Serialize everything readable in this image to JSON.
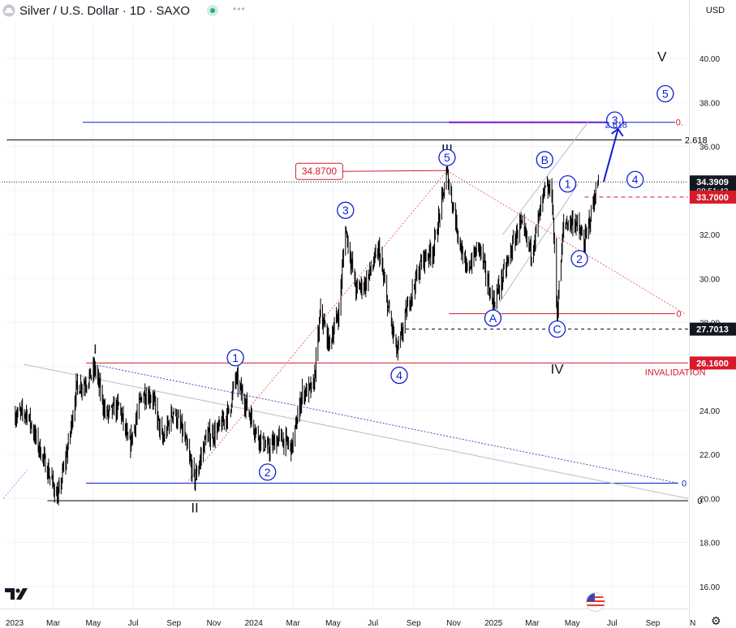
{
  "header": {
    "title": "Silver / U.S. Dollar · 1D · SAXO",
    "currency": "USD",
    "more_icon": "dots-icon"
  },
  "colors": {
    "candle": "#000000",
    "wave_blue": "#0d1fd1",
    "invalidation_red": "#d81b2a",
    "price_label_bg": "#131722",
    "price_red_bg": "#d81b2a",
    "grid": "#f0f3fa"
  },
  "chart_data": {
    "type": "candlestick",
    "y_axis": {
      "min": 15,
      "max": 41.7,
      "ticks": [
        16,
        18,
        20,
        22,
        24,
        26,
        28,
        30,
        32,
        34,
        36,
        38,
        40
      ]
    },
    "x_axis": {
      "start": "2023-01-01",
      "end": "2025-10-15",
      "ticks": [
        {
          "label": "2023",
          "date": "2023-01-01"
        },
        {
          "label": "Mar",
          "date": "2023-03-01"
        },
        {
          "label": "May",
          "date": "2023-05-01"
        },
        {
          "label": "Jul",
          "date": "2023-07-01"
        },
        {
          "label": "Sep",
          "date": "2023-09-01"
        },
        {
          "label": "Nov",
          "date": "2023-11-01"
        },
        {
          "label": "2024",
          "date": "2024-01-01"
        },
        {
          "label": "Mar",
          "date": "2024-03-01"
        },
        {
          "label": "May",
          "date": "2024-05-01"
        },
        {
          "label": "Jul",
          "date": "2024-07-01"
        },
        {
          "label": "Sep",
          "date": "2024-09-01"
        },
        {
          "label": "Nov",
          "date": "2024-11-01"
        },
        {
          "label": "2025",
          "date": "2025-01-01"
        },
        {
          "label": "Mar",
          "date": "2025-03-01"
        },
        {
          "label": "May",
          "date": "2025-05-01"
        },
        {
          "label": "Jul",
          "date": "2025-07-01"
        },
        {
          "label": "Sep",
          "date": "2025-09-01"
        },
        {
          "label": "N",
          "date": "2025-11-01"
        }
      ]
    },
    "price_path": [
      [
        "2023-01-01",
        23.8
      ],
      [
        "2023-01-20",
        23.9
      ],
      [
        "2023-02-05",
        22.5
      ],
      [
        "2023-02-28",
        20.7
      ],
      [
        "2023-03-08",
        20.0
      ],
      [
        "2023-03-25",
        22.6
      ],
      [
        "2023-04-05",
        25.0
      ],
      [
        "2023-04-20",
        25.3
      ],
      [
        "2023-05-04",
        25.9
      ],
      [
        "2023-05-20",
        23.8
      ],
      [
        "2023-06-10",
        24.2
      ],
      [
        "2023-06-25",
        22.3
      ],
      [
        "2023-07-15",
        24.8
      ],
      [
        "2023-07-31",
        24.6
      ],
      [
        "2023-08-15",
        22.6
      ],
      [
        "2023-08-31",
        24.0
      ],
      [
        "2023-09-15",
        23.0
      ],
      [
        "2023-10-03",
        20.8
      ],
      [
        "2023-10-20",
        22.8
      ],
      [
        "2023-11-05",
        23.0
      ],
      [
        "2023-11-25",
        24.0
      ],
      [
        "2023-12-04",
        25.5
      ],
      [
        "2023-12-20",
        24.3
      ],
      [
        "2024-01-05",
        23.0
      ],
      [
        "2024-01-22",
        22.2
      ],
      [
        "2024-02-10",
        22.8
      ],
      [
        "2024-02-28",
        22.3
      ],
      [
        "2024-03-15",
        24.8
      ],
      [
        "2024-04-01",
        25.0
      ],
      [
        "2024-04-12",
        28.5
      ],
      [
        "2024-04-25",
        27.0
      ],
      [
        "2024-05-10",
        28.5
      ],
      [
        "2024-05-20",
        32.3
      ],
      [
        "2024-06-05",
        29.5
      ],
      [
        "2024-06-20",
        29.8
      ],
      [
        "2024-07-10",
        31.3
      ],
      [
        "2024-07-25",
        28.5
      ],
      [
        "2024-08-07",
        26.6
      ],
      [
        "2024-08-25",
        29.0
      ],
      [
        "2024-09-15",
        30.9
      ],
      [
        "2024-10-01",
        31.3
      ],
      [
        "2024-10-22",
        34.8
      ],
      [
        "2024-11-05",
        32.5
      ],
      [
        "2024-11-20",
        30.3
      ],
      [
        "2024-12-10",
        31.5
      ],
      [
        "2024-12-31",
        28.8
      ],
      [
        "2025-01-20",
        30.5
      ],
      [
        "2025-02-10",
        32.5
      ],
      [
        "2025-02-28",
        31.2
      ],
      [
        "2025-03-20",
        34.0
      ],
      [
        "2025-03-31",
        34.0
      ],
      [
        "2025-04-08",
        28.4
      ],
      [
        "2025-04-18",
        32.5
      ],
      [
        "2025-05-05",
        32.6
      ],
      [
        "2025-05-20",
        31.6
      ],
      [
        "2025-06-05",
        33.8
      ],
      [
        "2025-06-10",
        34.4
      ]
    ],
    "horizontal_lines": [
      {
        "name": "fib-top-blue",
        "y": 37.1,
        "x1": "2023-04-15",
        "x2": "2025-10-05",
        "color": "#0d1fd1",
        "width": 1
      },
      {
        "name": "fib-top-purple",
        "y": 37.1,
        "x1": "2024-10-25",
        "x2": "2025-07-20",
        "color": "#6a1fd1",
        "width": 2
      },
      {
        "name": "fib-2618-black",
        "y": 36.3,
        "x1": "2022-12-20",
        "x2": "2025-10-15",
        "color": "#000000",
        "width": 1
      },
      {
        "name": "last-price-dotted",
        "y": 34.39,
        "x1": "2022-12-01",
        "x2": "2025-11-15",
        "color": "#131722",
        "width": 1,
        "dash": "1,2"
      },
      {
        "name": "level-3370",
        "y": 33.7,
        "x1": "2025-05-20",
        "x2": "2025-11-15",
        "color": "#d81b2a",
        "width": 1,
        "dash": "5,4"
      },
      {
        "name": "wave-a-low",
        "y": 28.4,
        "x1": "2024-10-25",
        "x2": "2025-10-05",
        "color": "#d81b2a",
        "width": 1
      },
      {
        "name": "level-27701",
        "y": 27.7,
        "x1": "2024-08-20",
        "x2": "2025-11-15",
        "color": "#000000",
        "width": 1,
        "dash": "4,4"
      },
      {
        "name": "invalidation",
        "y": 26.16,
        "x1": "2023-04-20",
        "x2": "2025-11-15",
        "color": "#d81b2a",
        "width": 1
      },
      {
        "name": "fib-zero-blue",
        "y": 20.7,
        "x1": "2023-04-20",
        "x2": "2025-10-10",
        "color": "#0d1fd1",
        "width": 1
      },
      {
        "name": "fib-zero-black",
        "y": 19.9,
        "x1": "2023-02-20",
        "x2": "2025-11-05",
        "color": "#000000",
        "width": 1
      }
    ],
    "trend_lines": [
      {
        "name": "wedge-upper",
        "x1": "2023-01-15",
        "y1": 26.1,
        "x2": "2025-10-25",
        "y2": 20.0,
        "color": "#b8bcc8",
        "width": 1
      },
      {
        "name": "wedge-lower-dotted",
        "x1": "2023-05-01",
        "y1": 26.1,
        "x2": "2025-10-10",
        "y2": 20.7,
        "color": "#3f51b5",
        "width": 1,
        "dash": "2,2"
      },
      {
        "name": "fib-up-dotted",
        "x1": "2023-09-20",
        "y1": 20.7,
        "x2": "2024-10-22",
        "y2": 34.9,
        "color": "#f06a7a",
        "width": 1,
        "dash": "2,2"
      },
      {
        "name": "fib-down-dotted",
        "x1": "2024-10-22",
        "y1": 34.9,
        "x2": "2025-10-20",
        "y2": 28.4,
        "color": "#f06a7a",
        "width": 1,
        "dash": "2,2"
      },
      {
        "name": "ghost-left",
        "x1": "2022-12-15",
        "y1": 20.0,
        "x2": "2023-01-20",
        "y2": 21.3,
        "color": "#90a0ff",
        "width": 1,
        "dash": "2,2"
      },
      {
        "name": "channel-upper",
        "x1": "2025-01-15",
        "y1": 32.0,
        "x2": "2025-05-25",
        "y2": 37.1,
        "color": "#b8bcc8",
        "width": 1
      },
      {
        "name": "channel-lower",
        "x1": "2025-01-10",
        "y1": 28.9,
        "x2": "2025-05-10",
        "y2": 34.3,
        "color": "#b8bcc8",
        "width": 1
      }
    ],
    "price_callout": {
      "label": "34.8700",
      "y": 34.87,
      "box_x": "2024-03-05",
      "line_to": "2024-10-22",
      "color": "#d81b2a"
    },
    "projection_arrow": {
      "x1": "2025-06-18",
      "y1": 34.4,
      "x2": "2025-07-10",
      "y2": 36.8,
      "color": "#0d1fd1"
    },
    "annotations": [
      {
        "text": "I",
        "date": "2023-05-04",
        "y": 26.8,
        "style": "roman"
      },
      {
        "text": "II",
        "date": "2023-10-03",
        "y": 19.6,
        "style": "roman"
      },
      {
        "text": "III",
        "date": "2024-10-22",
        "y": 35.9,
        "style": "roman"
      },
      {
        "text": "IV",
        "date": "2025-04-08",
        "y": 25.9,
        "style": "roman"
      },
      {
        "text": "V",
        "date": "2025-09-15",
        "y": 40.1,
        "style": "roman"
      },
      {
        "text": "1",
        "date": "2023-12-04",
        "y": 26.4,
        "style": "circle"
      },
      {
        "text": "2",
        "date": "2024-01-22",
        "y": 21.2,
        "style": "circle"
      },
      {
        "text": "3",
        "date": "2024-05-20",
        "y": 33.1,
        "style": "circle"
      },
      {
        "text": "4",
        "date": "2024-08-10",
        "y": 25.6,
        "style": "circle"
      },
      {
        "text": "5",
        "date": "2024-10-22",
        "y": 35.5,
        "style": "circle"
      },
      {
        "text": "A",
        "date": "2024-12-31",
        "y": 28.2,
        "style": "circle"
      },
      {
        "text": "B",
        "date": "2025-03-20",
        "y": 35.4,
        "style": "circle"
      },
      {
        "text": "C",
        "date": "2025-04-08",
        "y": 27.7,
        "style": "circle"
      },
      {
        "text": "1",
        "date": "2025-04-24",
        "y": 34.3,
        "style": "circle"
      },
      {
        "text": "2",
        "date": "2025-05-12",
        "y": 30.9,
        "style": "circle"
      },
      {
        "text": "3",
        "date": "2025-07-05",
        "y": 37.2,
        "style": "circle"
      },
      {
        "text": "4",
        "date": "2025-08-05",
        "y": 34.5,
        "style": "circle"
      },
      {
        "text": "5",
        "date": "2025-09-20",
        "y": 38.4,
        "style": "circle"
      }
    ],
    "fib_labels": [
      {
        "text": "2.618",
        "date": "2025-06-20",
        "y": 37.0,
        "color": "#0d1fd1"
      },
      {
        "text": "0.",
        "date": "2025-10-06",
        "y": 37.1,
        "color": "#d81b2a"
      },
      {
        "text": "2.618",
        "date": "2025-10-20",
        "y": 36.3,
        "color": "#000000"
      },
      {
        "text": "0",
        "date": "2025-10-07",
        "y": 28.4,
        "color": "#d81b2a"
      },
      {
        "text": "0",
        "date": "2025-10-15",
        "y": 20.7,
        "color": "#0d1fd1"
      },
      {
        "text": "0",
        "date": "2025-11-08",
        "y": 19.9,
        "color": "#000000"
      },
      {
        "text": "INVALIDATION",
        "date": "2025-08-20",
        "y": 25.75,
        "color": "#d81b2a"
      }
    ],
    "price_badges": [
      {
        "text": "34.3909",
        "sub": "08:51:42",
        "y": 34.39,
        "style": "dark"
      },
      {
        "text": "33.7000",
        "y": 33.7,
        "style": "red"
      },
      {
        "text": "27.7013",
        "y": 27.7,
        "style": "dark"
      },
      {
        "text": "26.1600",
        "y": 26.16,
        "style": "red"
      }
    ]
  }
}
